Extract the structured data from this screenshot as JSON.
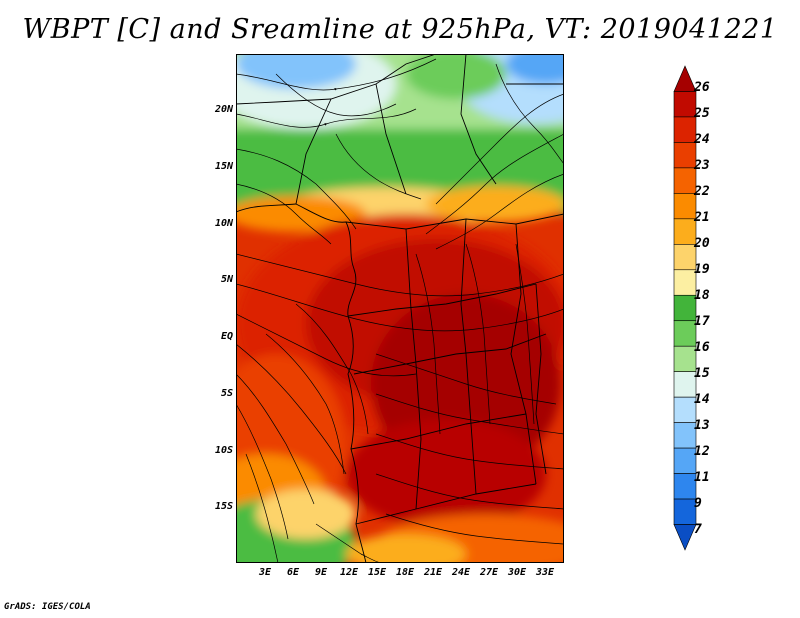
{
  "title": "WBPT [C] and Sreamline at 925hPa, VT: 2019041221",
  "credit": "GrADS: IGES/COLA",
  "map": {
    "lat_labels": [
      "20N",
      "15N",
      "10N",
      "5N",
      "EQ",
      "5S",
      "10S",
      "15S"
    ],
    "lon_labels": [
      "3E",
      "6E",
      "9E",
      "12E",
      "15E",
      "18E",
      "21E",
      "24E",
      "27E",
      "30E",
      "33E"
    ]
  },
  "colorbar": {
    "labels": [
      "26",
      "25",
      "24",
      "23",
      "22",
      "21",
      "20",
      "19",
      "18",
      "17",
      "16",
      "15",
      "14",
      "13",
      "12",
      "11",
      "9",
      "7"
    ],
    "colors": [
      "#a50000",
      "#c10a00",
      "#dc2300",
      "#ea3f00",
      "#f56300",
      "#fb8b00",
      "#fcad1c",
      "#fdd36b",
      "#fcefa2",
      "#42b43a",
      "#6ccc5a",
      "#a6e28e",
      "#dff4ee",
      "#b4defd",
      "#82c3fb",
      "#55a6f6",
      "#2e86ee",
      "#1466dc",
      "#0a4ec4"
    ]
  }
}
